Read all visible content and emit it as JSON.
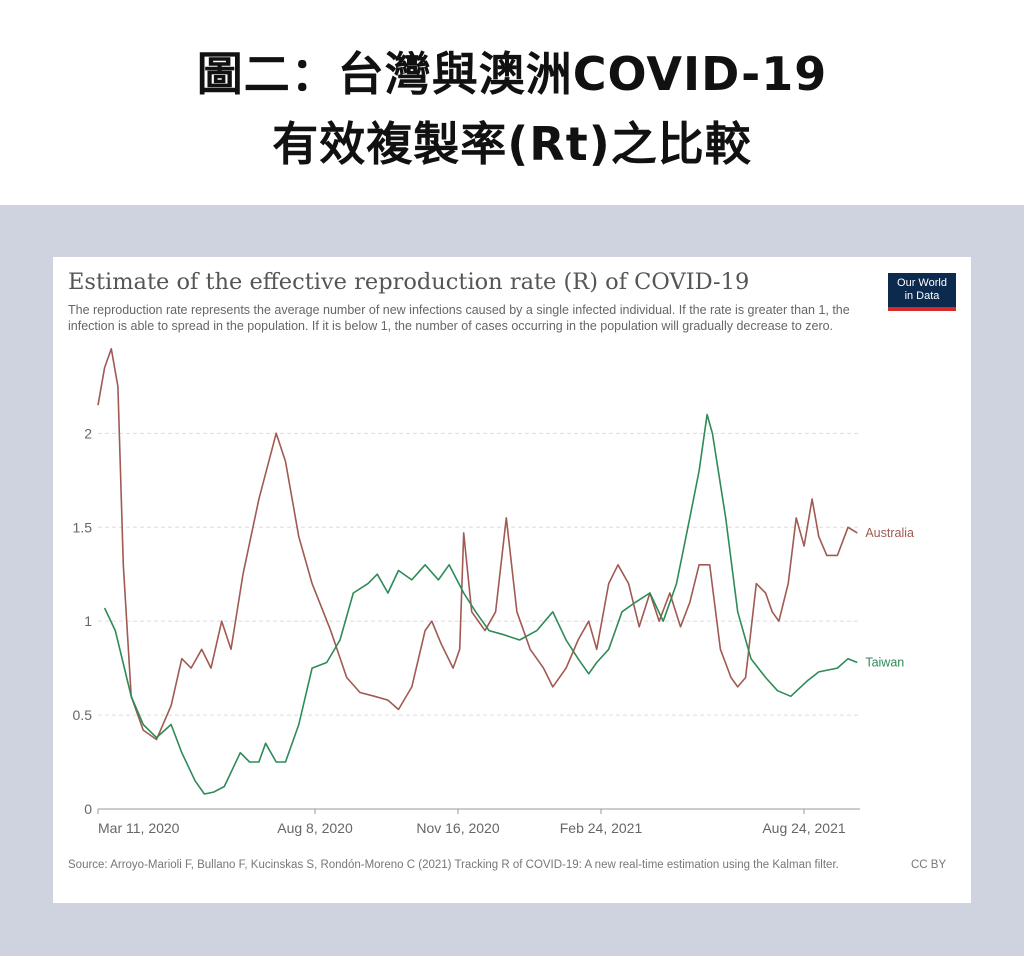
{
  "header": {
    "line1": "圖二：台灣與澳洲COVID-19",
    "line2": "有效複製率(Rt)之比較"
  },
  "logo": {
    "line1": "Our World",
    "line2": "in Data"
  },
  "colors": {
    "australia": "#a05a52",
    "taiwan": "#2e8b57",
    "background": "#cfd3df",
    "logo_bg": "#0b2a4e",
    "logo_bar": "#d42a2a"
  },
  "chart_data": {
    "type": "line",
    "title": "Estimate of the effective reproduction rate (R) of COVID-19",
    "subtitle": "The reproduction rate represents the average number of new infections caused by a single infected individual. If the rate is greater than 1, the infection is able to spread in the population. If it is below 1, the number of cases occurring in the population will gradually decrease to zero.",
    "source": "Source: Arroyo-Marioli F, Bullano F, Kucinskas S, Rondón-Moreno C (2021) Tracking R of COVID-19: A new real-time estimation using the Kalman filter.",
    "license": "CC BY",
    "x_ticks": [
      "Mar 11, 2020",
      "Aug 8, 2020",
      "Nov 16, 2020",
      "Feb 24, 2021",
      "Aug 24, 2021"
    ],
    "y_ticks": [
      "0",
      "0.5",
      "1",
      "1.5",
      "2"
    ],
    "ylim": [
      0,
      2.3
    ],
    "x_range": [
      "2020-02-15",
      "2021-09-10"
    ],
    "grid": "horizontal dashed",
    "series": [
      {
        "name": "Australia",
        "points": [
          [
            "2020-02-15",
            2.15
          ],
          [
            "2020-02-20",
            2.35
          ],
          [
            "2020-02-25",
            2.45
          ],
          [
            "2020-03-01",
            2.25
          ],
          [
            "2020-03-05",
            1.3
          ],
          [
            "2020-03-11",
            0.6
          ],
          [
            "2020-03-20",
            0.42
          ],
          [
            "2020-03-30",
            0.37
          ],
          [
            "2020-04-10",
            0.55
          ],
          [
            "2020-04-18",
            0.8
          ],
          [
            "2020-04-25",
            0.75
          ],
          [
            "2020-05-03",
            0.85
          ],
          [
            "2020-05-10",
            0.75
          ],
          [
            "2020-05-18",
            1.0
          ],
          [
            "2020-05-25",
            0.85
          ],
          [
            "2020-06-03",
            1.25
          ],
          [
            "2020-06-15",
            1.65
          ],
          [
            "2020-06-28",
            2.0
          ],
          [
            "2020-07-05",
            1.85
          ],
          [
            "2020-07-15",
            1.45
          ],
          [
            "2020-07-25",
            1.2
          ],
          [
            "2020-08-08",
            0.95
          ],
          [
            "2020-08-20",
            0.7
          ],
          [
            "2020-08-30",
            0.62
          ],
          [
            "2020-09-10",
            0.6
          ],
          [
            "2020-09-20",
            0.58
          ],
          [
            "2020-09-28",
            0.53
          ],
          [
            "2020-10-08",
            0.65
          ],
          [
            "2020-10-18",
            0.95
          ],
          [
            "2020-10-23",
            1.0
          ],
          [
            "2020-10-30",
            0.88
          ],
          [
            "2020-11-08",
            0.75
          ],
          [
            "2020-11-13",
            0.85
          ],
          [
            "2020-11-16",
            1.47
          ],
          [
            "2020-11-22",
            1.05
          ],
          [
            "2020-12-02",
            0.95
          ],
          [
            "2020-12-10",
            1.05
          ],
          [
            "2020-12-18",
            1.55
          ],
          [
            "2020-12-26",
            1.05
          ],
          [
            "2021-01-05",
            0.85
          ],
          [
            "2021-01-15",
            0.75
          ],
          [
            "2021-01-22",
            0.65
          ],
          [
            "2021-02-01",
            0.75
          ],
          [
            "2021-02-10",
            0.9
          ],
          [
            "2021-02-18",
            1.0
          ],
          [
            "2021-02-24",
            0.85
          ],
          [
            "2021-03-05",
            1.2
          ],
          [
            "2021-03-12",
            1.3
          ],
          [
            "2021-03-20",
            1.2
          ],
          [
            "2021-03-28",
            0.97
          ],
          [
            "2021-04-05",
            1.15
          ],
          [
            "2021-04-12",
            1.0
          ],
          [
            "2021-04-20",
            1.15
          ],
          [
            "2021-04-28",
            0.97
          ],
          [
            "2021-05-05",
            1.1
          ],
          [
            "2021-05-12",
            1.3
          ],
          [
            "2021-05-20",
            1.3
          ],
          [
            "2021-05-28",
            0.85
          ],
          [
            "2021-06-05",
            0.7
          ],
          [
            "2021-06-10",
            0.65
          ],
          [
            "2021-06-16",
            0.7
          ],
          [
            "2021-06-24",
            1.2
          ],
          [
            "2021-07-01",
            1.15
          ],
          [
            "2021-07-06",
            1.05
          ],
          [
            "2021-07-11",
            1.0
          ],
          [
            "2021-07-18",
            1.2
          ],
          [
            "2021-07-24",
            1.55
          ],
          [
            "2021-07-30",
            1.4
          ],
          [
            "2021-08-05",
            1.65
          ],
          [
            "2021-08-10",
            1.45
          ],
          [
            "2021-08-16",
            1.35
          ],
          [
            "2021-08-24",
            1.35
          ],
          [
            "2021-09-01",
            1.5
          ],
          [
            "2021-09-08",
            1.47
          ]
        ]
      },
      {
        "name": "Taiwan",
        "points": [
          [
            "2020-02-20",
            1.07
          ],
          [
            "2020-02-28",
            0.95
          ],
          [
            "2020-03-11",
            0.6
          ],
          [
            "2020-03-20",
            0.45
          ],
          [
            "2020-03-30",
            0.38
          ],
          [
            "2020-04-10",
            0.45
          ],
          [
            "2020-04-18",
            0.3
          ],
          [
            "2020-04-28",
            0.15
          ],
          [
            "2020-05-05",
            0.08
          ],
          [
            "2020-05-12",
            0.09
          ],
          [
            "2020-05-20",
            0.12
          ],
          [
            "2020-06-01",
            0.3
          ],
          [
            "2020-06-08",
            0.25
          ],
          [
            "2020-06-15",
            0.25
          ],
          [
            "2020-06-20",
            0.35
          ],
          [
            "2020-06-28",
            0.25
          ],
          [
            "2020-07-05",
            0.25
          ],
          [
            "2020-07-15",
            0.45
          ],
          [
            "2020-07-25",
            0.75
          ],
          [
            "2020-08-05",
            0.78
          ],
          [
            "2020-08-15",
            0.9
          ],
          [
            "2020-08-25",
            1.15
          ],
          [
            "2020-09-05",
            1.2
          ],
          [
            "2020-09-12",
            1.25
          ],
          [
            "2020-09-20",
            1.15
          ],
          [
            "2020-09-28",
            1.27
          ],
          [
            "2020-10-08",
            1.22
          ],
          [
            "2020-10-18",
            1.3
          ],
          [
            "2020-10-28",
            1.22
          ],
          [
            "2020-11-05",
            1.3
          ],
          [
            "2020-11-16",
            1.15
          ],
          [
            "2020-11-25",
            1.05
          ],
          [
            "2020-12-05",
            0.95
          ],
          [
            "2020-12-15",
            0.93
          ],
          [
            "2020-12-28",
            0.9
          ],
          [
            "2021-01-10",
            0.95
          ],
          [
            "2021-01-22",
            1.05
          ],
          [
            "2021-02-01",
            0.9
          ],
          [
            "2021-02-10",
            0.8
          ],
          [
            "2021-02-18",
            0.72
          ],
          [
            "2021-02-24",
            0.78
          ],
          [
            "2021-03-05",
            0.85
          ],
          [
            "2021-03-15",
            1.05
          ],
          [
            "2021-03-25",
            1.1
          ],
          [
            "2021-04-05",
            1.15
          ],
          [
            "2021-04-15",
            1.0
          ],
          [
            "2021-04-25",
            1.2
          ],
          [
            "2021-05-05",
            1.55
          ],
          [
            "2021-05-12",
            1.8
          ],
          [
            "2021-05-18",
            2.1
          ],
          [
            "2021-05-22",
            2.0
          ],
          [
            "2021-06-01",
            1.55
          ],
          [
            "2021-06-10",
            1.05
          ],
          [
            "2021-06-20",
            0.8
          ],
          [
            "2021-07-01",
            0.7
          ],
          [
            "2021-07-10",
            0.63
          ],
          [
            "2021-07-20",
            0.6
          ],
          [
            "2021-08-01",
            0.68
          ],
          [
            "2021-08-10",
            0.73
          ],
          [
            "2021-08-24",
            0.75
          ],
          [
            "2021-09-01",
            0.8
          ],
          [
            "2021-09-08",
            0.78
          ]
        ]
      }
    ]
  }
}
